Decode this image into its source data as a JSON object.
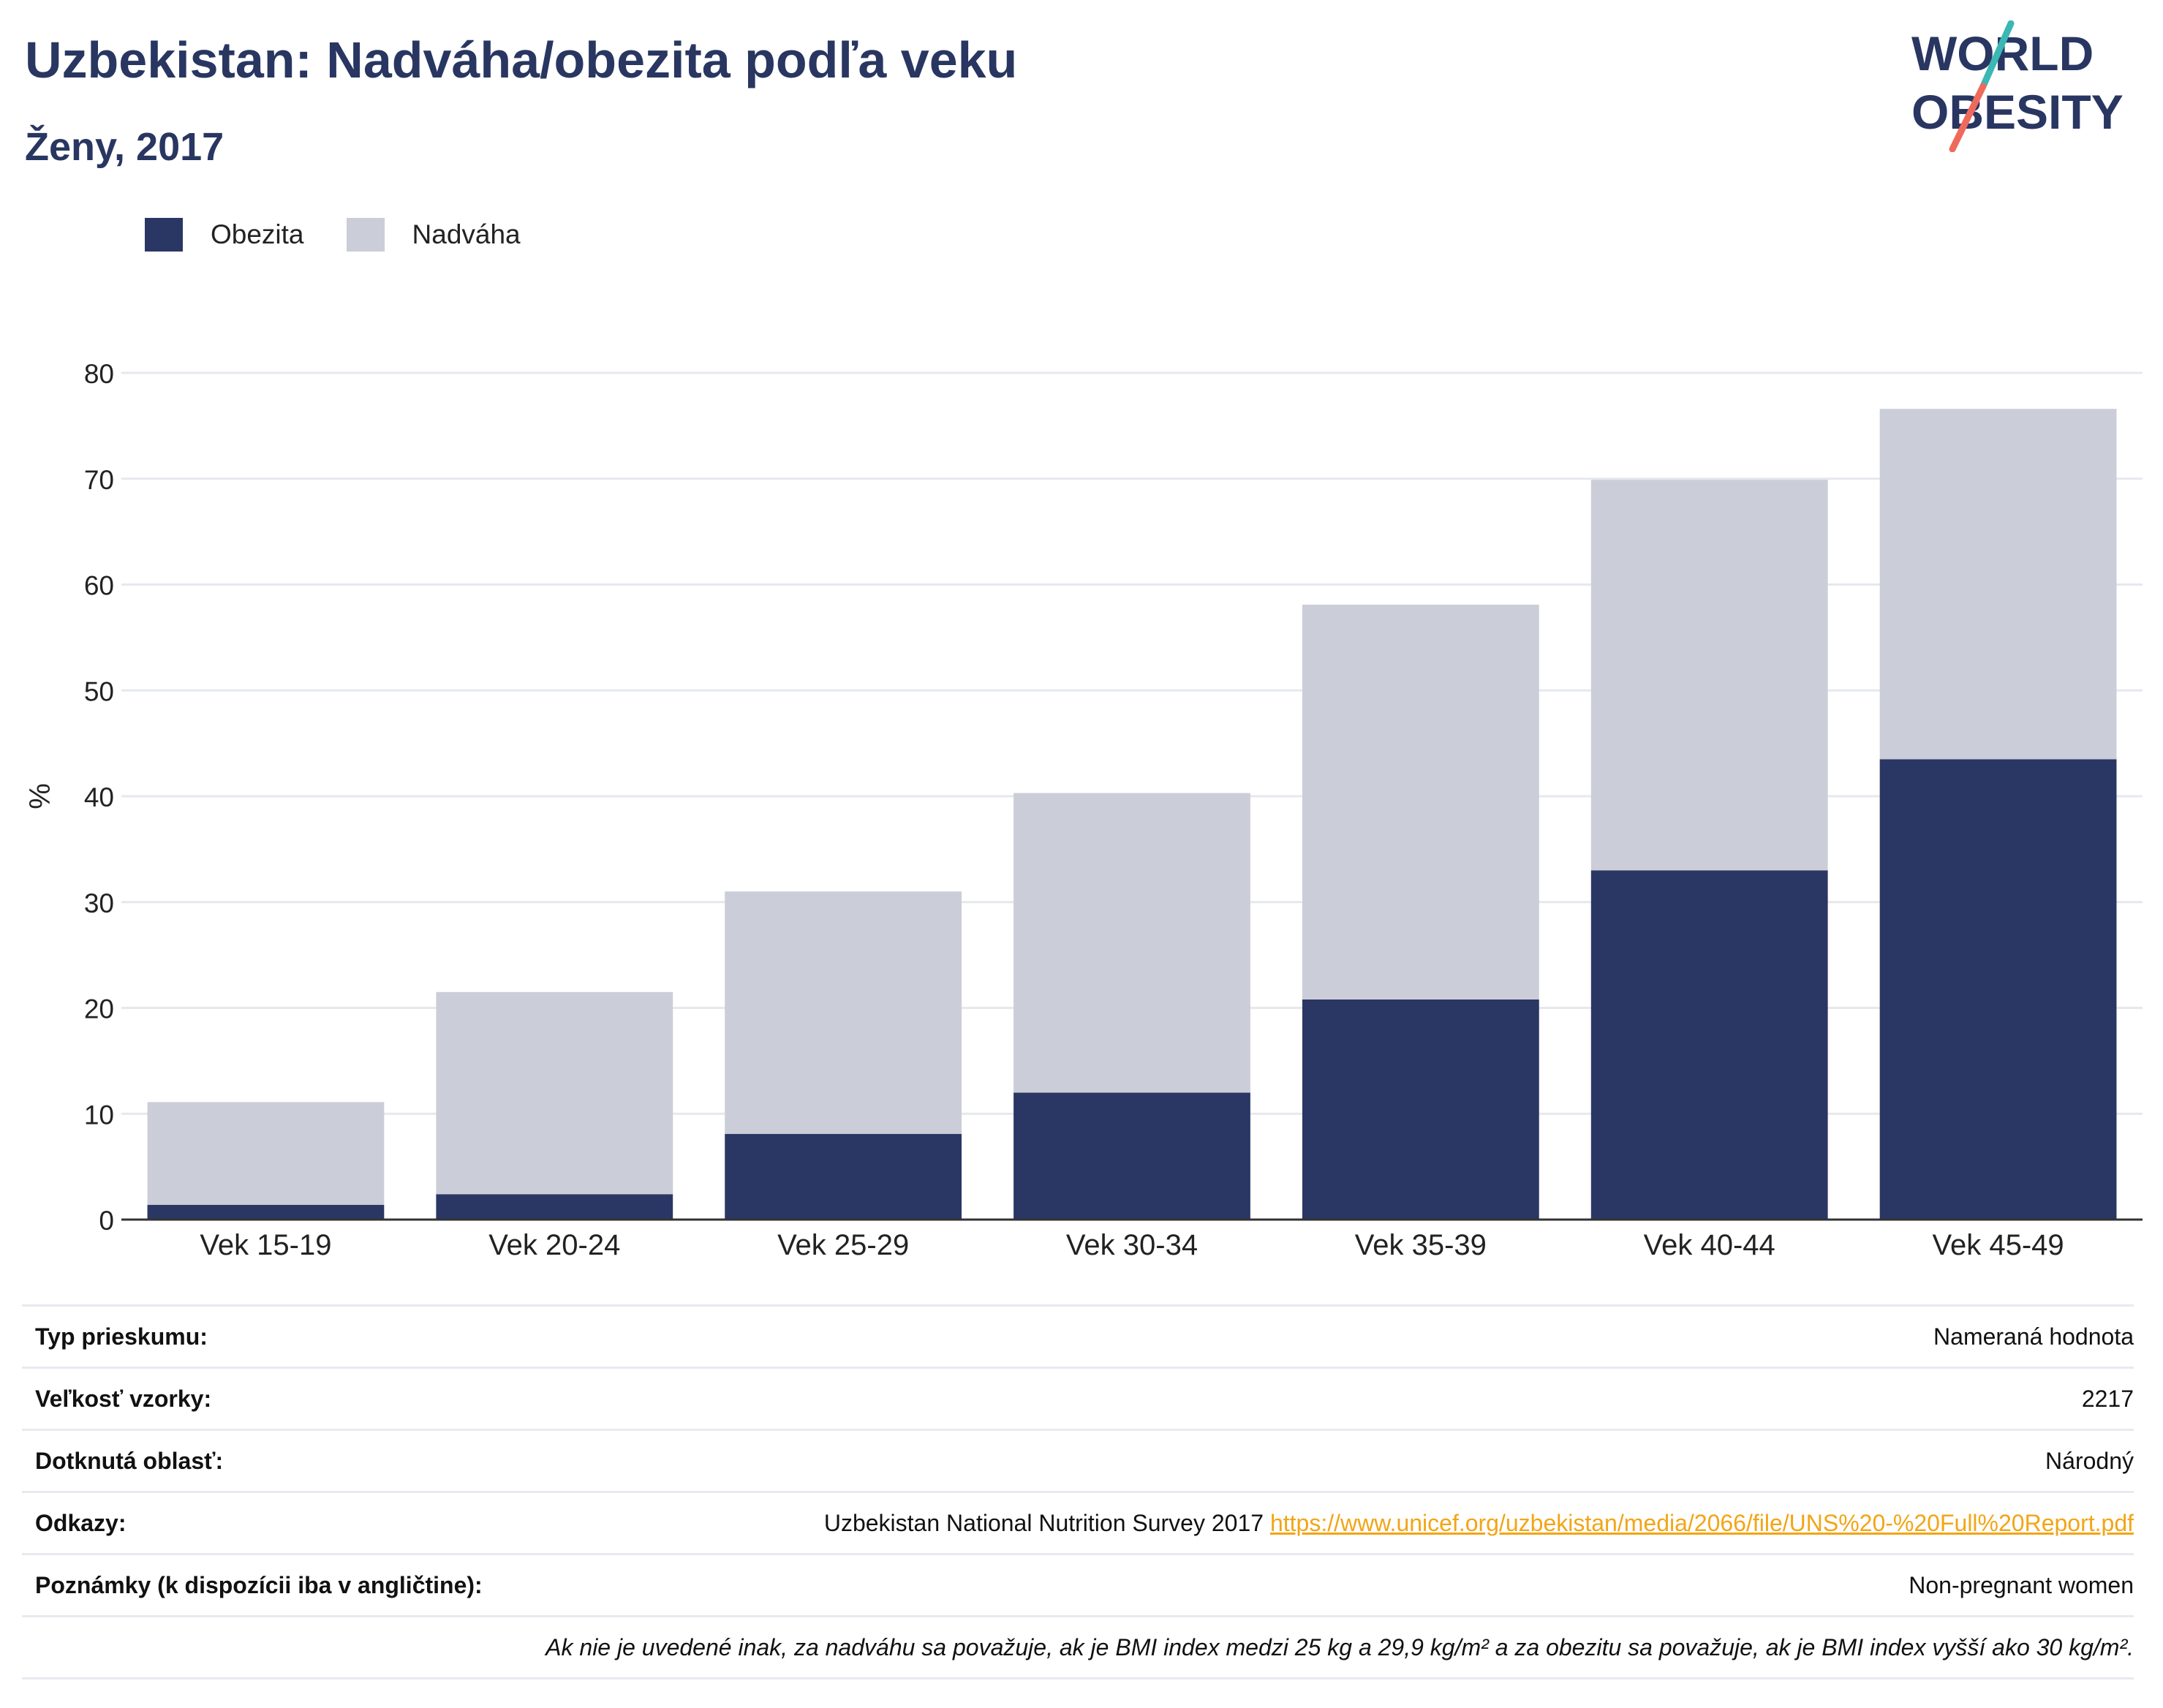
{
  "header": {
    "title": "Uzbekistan: Nadváha/obezita podľa veku",
    "subtitle": "Ženy, 2017"
  },
  "logo": {
    "line1": "WORLD",
    "line2": "OBESITY",
    "colors": {
      "text": "#283661",
      "slash_top": "#3bb7b4",
      "slash_bottom": "#ef6a5c"
    }
  },
  "colors": {
    "obesity": "#2a3764",
    "overweight": "#cbcdd8",
    "grid": "#e6e8ef",
    "axis": "#333333"
  },
  "chart_data": {
    "type": "bar",
    "stacked": true,
    "categories": [
      "Vek 15-19",
      "Vek 20-24",
      "Vek 25-29",
      "Vek 30-34",
      "Vek 35-39",
      "Vek 40-44",
      "Vek 45-49"
    ],
    "series": [
      {
        "name": "Obezita",
        "color": "#2a3764",
        "values": [
          1.4,
          2.4,
          8.1,
          12.0,
          20.8,
          33.0,
          43.5
        ]
      },
      {
        "name": "Nadváha",
        "color": "#cbcdd8",
        "values": [
          9.7,
          19.1,
          22.9,
          28.3,
          37.3,
          36.9,
          33.1
        ]
      }
    ],
    "totals": [
      11.1,
      21.5,
      31.0,
      40.3,
      58.1,
      69.9,
      76.6
    ],
    "ylabel": "%",
    "xlabel": "",
    "ylim": [
      0,
      80
    ],
    "yticks": [
      0,
      10,
      20,
      30,
      40,
      50,
      60,
      70,
      80
    ],
    "grid": true,
    "legend_position": "top-left"
  },
  "info": {
    "rows": [
      {
        "key": "Typ prieskumu:",
        "value": "Nameraná hodnota"
      },
      {
        "key": "Veľkosť vzorky:",
        "value": "2217"
      },
      {
        "key": "Dotknutá oblasť:",
        "value": "Národný"
      },
      {
        "key": "Odkazy:",
        "value": "Uzbekistan National Nutrition Survey 2017",
        "link": "https://www.unicef.org/uzbekistan/media/2066/file/UNS%20-%20Full%20Report.pdf"
      },
      {
        "key": "Poznámky (k dispozícii iba v angličtine):",
        "value": "Non-pregnant women"
      }
    ],
    "footnote": "Ak nie je uvedené inak, za nadváhu sa považuje, ak je BMI index medzi 25 kg a 29,9 kg/m² a za obezitu sa považuje, ak je BMI index vyšší ako 30 kg/m²."
  }
}
